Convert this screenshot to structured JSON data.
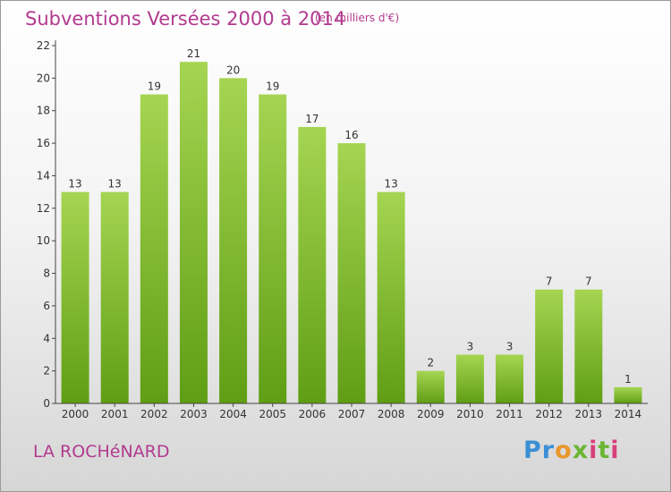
{
  "title": "Subventions Versées 2000 à 2014",
  "subtitle": "(en milliers d'€)",
  "commune": "LA ROCHéNARD",
  "logo": {
    "text": "Proxiti",
    "colors": [
      "#3a8fd4",
      "#e9962b",
      "#6bb535",
      "#d8407a"
    ]
  },
  "colors": {
    "bar_light": "#a5d552",
    "bar_dark": "#5f9e14",
    "text_accent": "#b23a8f",
    "axis": "#444444"
  },
  "chart_data": {
    "type": "bar",
    "categories": [
      "2000",
      "2001",
      "2002",
      "2003",
      "2004",
      "2005",
      "2006",
      "2007",
      "2008",
      "2009",
      "2010",
      "2011",
      "2012",
      "2013",
      "2014"
    ],
    "values": [
      13,
      13,
      19,
      21,
      20,
      19,
      17,
      16,
      13,
      2,
      3,
      3,
      7,
      7,
      1
    ],
    "ylim": [
      0,
      22
    ],
    "yticks": [
      0,
      2,
      4,
      6,
      8,
      10,
      12,
      14,
      16,
      18,
      20,
      22
    ],
    "grid": false,
    "data_labels": true
  }
}
